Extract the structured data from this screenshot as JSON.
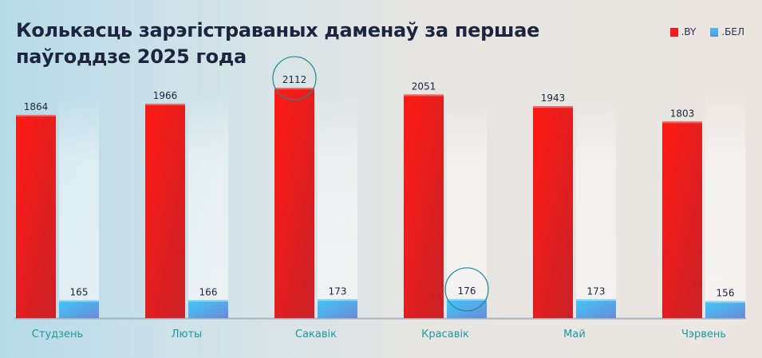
{
  "chart_data": {
    "type": "bar",
    "title": "Колькасць зарэгістраваных даменаў за першае паўгоддзе 2025 года",
    "categories": [
      "Студзень",
      "Люты",
      "Сакавік",
      "Красавік",
      "Май",
      "Чэрвень"
    ],
    "series": [
      {
        "name": ".BY",
        "values": [
          1864,
          1966,
          2112,
          2051,
          1943,
          1803
        ],
        "color": "#ee1c1c"
      },
      {
        "name": ".БЕЛ",
        "values": [
          165,
          166,
          173,
          176,
          173,
          156
        ],
        "color": "#3fb8f0"
      }
    ],
    "highlighted": [
      {
        "series": ".BY",
        "category": "Сакавік"
      },
      {
        "series": ".БЕЛ",
        "category": "Красавік"
      }
    ],
    "highlight_color": "#1a8a94",
    "category_label_color": "#1a9aa0",
    "legend": "top-right",
    "grid": false
  }
}
